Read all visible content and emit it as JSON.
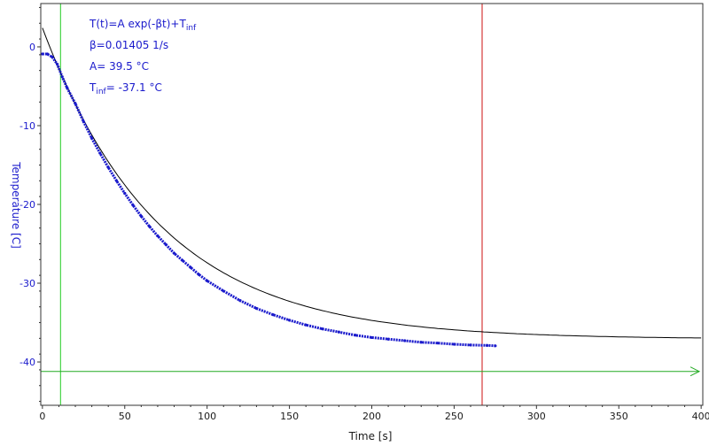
{
  "chart_data": {
    "type": "scatter",
    "xlabel": "Time [s]",
    "ylabel": "Temperature [C]",
    "xlim": [
      -1,
      401
    ],
    "ylim": [
      -45.5,
      5.5
    ],
    "xticks": [
      0,
      50,
      100,
      150,
      200,
      250,
      300,
      350,
      400
    ],
    "yticks": [
      0,
      -10,
      -20,
      -30,
      -40
    ],
    "xtick_labels": [
      "0",
      "50",
      "100",
      "150",
      "200",
      "250",
      "300",
      "350",
      "400"
    ],
    "ytick_labels": [
      "0",
      "-10",
      "-20",
      "-30",
      "-40"
    ],
    "grid": false,
    "measured": {
      "color": "#1a1acc",
      "points": [
        [
          0,
          -0.9
        ],
        [
          3,
          -0.9
        ],
        [
          6,
          -1.3
        ],
        [
          9,
          -2.2
        ],
        [
          12,
          -3.8
        ],
        [
          15,
          -5.2
        ],
        [
          20,
          -7.2
        ],
        [
          25,
          -9.5
        ],
        [
          30,
          -11.6
        ],
        [
          35,
          -13.5
        ],
        [
          40,
          -15.3
        ],
        [
          45,
          -17.0
        ],
        [
          50,
          -18.6
        ],
        [
          55,
          -20.1
        ],
        [
          60,
          -21.5
        ],
        [
          65,
          -22.8
        ],
        [
          70,
          -24.0
        ],
        [
          75,
          -25.1
        ],
        [
          80,
          -26.2
        ],
        [
          85,
          -27.1
        ],
        [
          90,
          -28.0
        ],
        [
          95,
          -28.9
        ],
        [
          100,
          -29.7
        ],
        [
          110,
          -31.0
        ],
        [
          120,
          -32.2
        ],
        [
          130,
          -33.2
        ],
        [
          140,
          -34.0
        ],
        [
          150,
          -34.7
        ],
        [
          160,
          -35.3
        ],
        [
          170,
          -35.8
        ],
        [
          180,
          -36.2
        ],
        [
          190,
          -36.6
        ],
        [
          200,
          -36.9
        ],
        [
          210,
          -37.1
        ],
        [
          220,
          -37.3
        ],
        [
          230,
          -37.5
        ],
        [
          240,
          -37.6
        ],
        [
          250,
          -37.75
        ],
        [
          260,
          -37.85
        ],
        [
          270,
          -37.9
        ],
        [
          275,
          -37.95
        ]
      ]
    },
    "fit": {
      "color": "#000000",
      "A": 39.5,
      "beta": 0.01405,
      "T_inf": -37.1,
      "x_range": [
        0,
        401
      ]
    },
    "vlines": [
      {
        "x": 11,
        "color": "#22cc22"
      },
      {
        "x": 267,
        "color": "#cc1111"
      }
    ],
    "hline": {
      "y": -41.2,
      "color": "#22aa22",
      "arrow": true
    },
    "annotations": [
      {
        "main": "T(t)=A exp(-βt)+T",
        "sub": "inf",
        "after": ""
      },
      {
        "main": "β=0.01405 1/s",
        "sub": "",
        "after": ""
      },
      {
        "main": "A= 39.5 °C",
        "sub": "",
        "after": ""
      },
      {
        "main": "T",
        "sub": "inf",
        "after": "= -37.1 °C"
      }
    ]
  }
}
